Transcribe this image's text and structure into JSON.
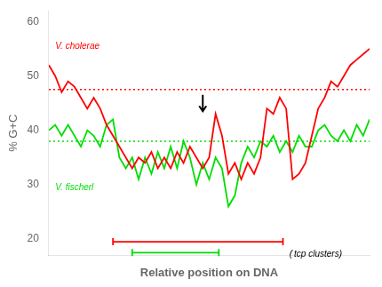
{
  "chart_data": {
    "type": "line",
    "xlabel": "Relative position on DNA",
    "ylabel": "% G+C",
    "x": [
      0,
      0.02,
      0.04,
      0.06,
      0.08,
      0.1,
      0.12,
      0.14,
      0.16,
      0.18,
      0.2,
      0.22,
      0.24,
      0.26,
      0.28,
      0.3,
      0.32,
      0.34,
      0.36,
      0.38,
      0.4,
      0.42,
      0.44,
      0.46,
      0.48,
      0.5,
      0.52,
      0.54,
      0.56,
      0.58,
      0.6,
      0.62,
      0.64,
      0.66,
      0.68,
      0.7,
      0.72,
      0.74,
      0.76,
      0.78,
      0.8,
      0.82,
      0.84,
      0.86,
      0.88,
      0.9,
      0.92,
      0.94,
      0.96,
      0.98,
      1
    ],
    "xlim": [
      0,
      1
    ],
    "xticks": [],
    "ylim": [
      17,
      62
    ],
    "yticks": [
      20,
      30,
      40,
      50,
      60
    ],
    "grid": false,
    "tick_labels": "y",
    "series": [
      {
        "color": "#ff0000",
        "values": [
          52,
          50,
          47,
          49,
          48,
          46,
          44,
          46,
          44,
          41,
          39,
          37,
          35,
          33,
          35,
          34,
          36,
          33,
          35,
          33,
          36,
          34,
          37,
          35,
          33,
          35,
          43,
          39,
          32,
          34,
          31,
          34,
          32,
          35,
          44,
          43,
          46,
          44,
          31,
          32,
          34,
          39,
          44,
          46,
          49,
          48,
          50,
          52,
          53,
          54,
          55
        ],
        "mean": 47.5,
        "bracket": {
          "x": [
            0.2,
            0.73
          ],
          "y": 19.5
        }
      },
      {
        "color": "#00dd00",
        "values": [
          40,
          41,
          39,
          41,
          39,
          37,
          40,
          39,
          37,
          41,
          42,
          35,
          33,
          35,
          31,
          35,
          32,
          36,
          33,
          37,
          33,
          38,
          35,
          30,
          34,
          31,
          35,
          33,
          26,
          28,
          34,
          37,
          35,
          38,
          37,
          39,
          36,
          38,
          36,
          39,
          37,
          37,
          40,
          41,
          39,
          38,
          40,
          38,
          41,
          39,
          42
        ],
        "mean": 38.0,
        "bracket": {
          "x": [
            0.26,
            0.53
          ],
          "y": 17.5
        }
      }
    ],
    "annotations": [
      {
        "text": "V. cholerae",
        "x": 0.02,
        "y": 55.5,
        "color": "#ff0000"
      },
      {
        "text": "V. fischerl",
        "x": 0.02,
        "y": 29.5,
        "color": "#00dd00"
      },
      {
        "text": "( tcp clusters)",
        "x": 0.75,
        "y": 17.2
      }
    ],
    "arrow": {
      "x": 0.48,
      "y_from": 46.5,
      "y_to": 43.5
    }
  }
}
